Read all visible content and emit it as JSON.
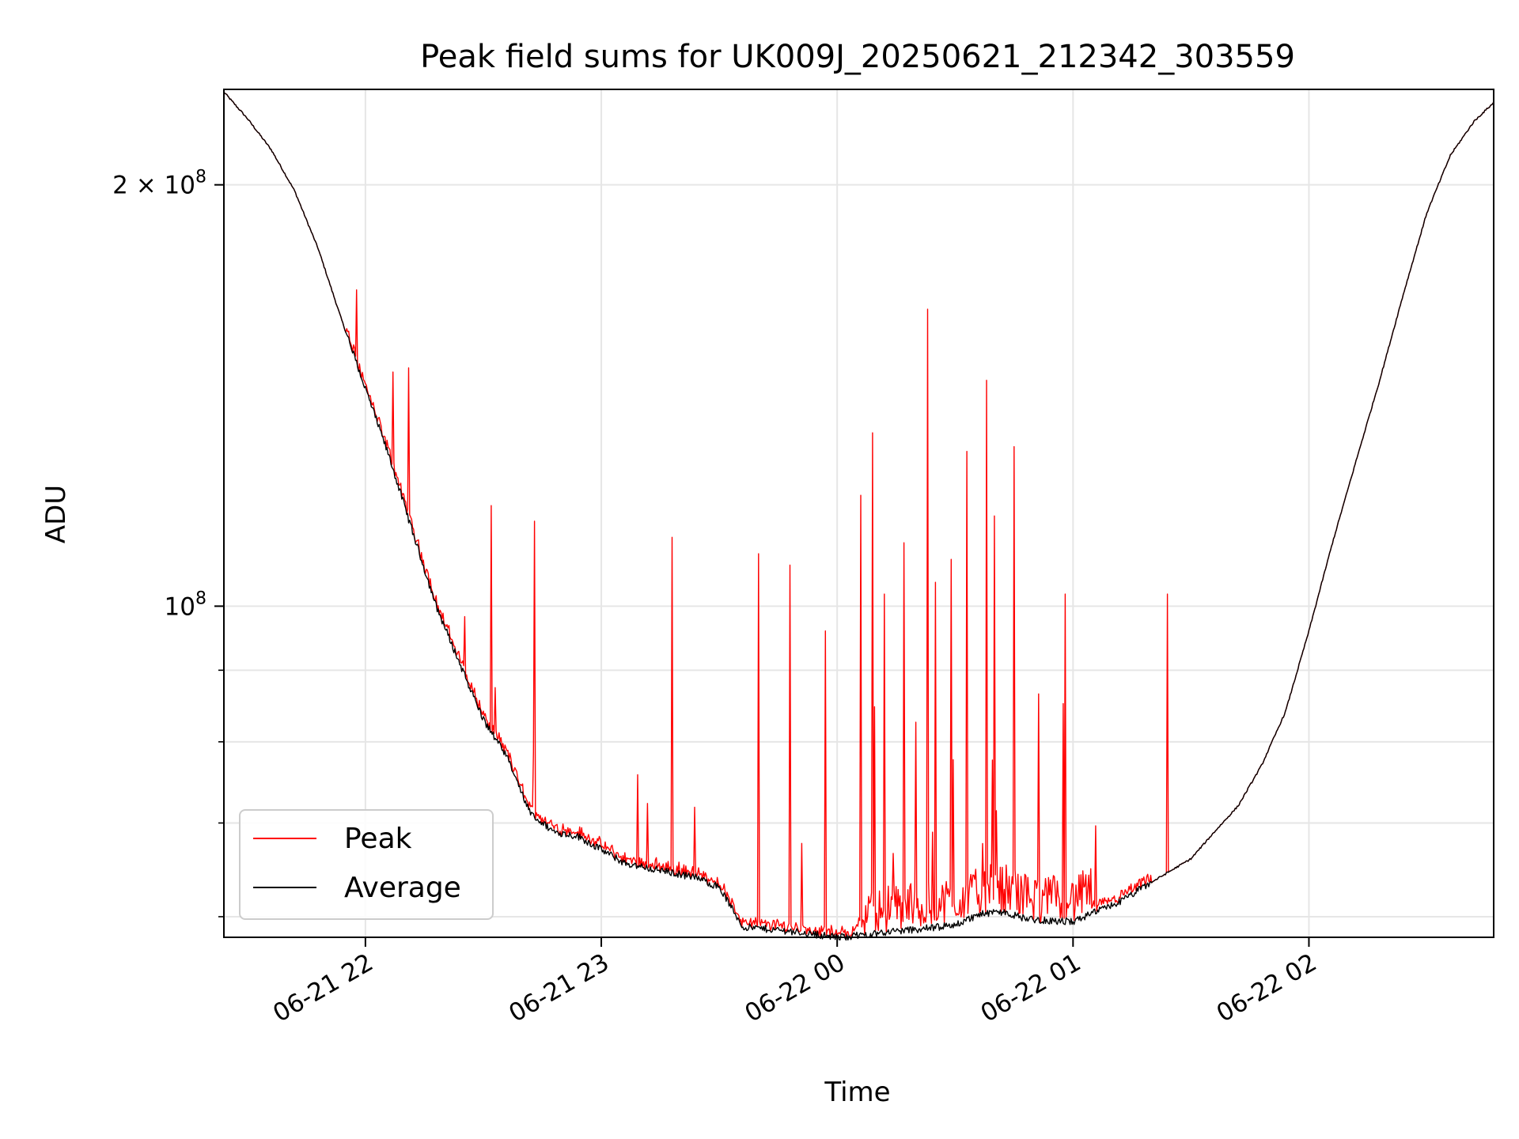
{
  "chart_data": {
    "type": "line",
    "title": "Peak field sums for UK009J_20250621_212342_303559",
    "xlabel": "Time",
    "ylabel": "ADU",
    "y_scale": "log",
    "grid": true,
    "legend_position": "lower-left",
    "xlim": [
      "2025-06-21 21:24",
      "2025-06-22 02:47"
    ],
    "ylim": [
      58000000,
      234000000
    ],
    "x_ticks": [
      {
        "t": "2025-06-21 22:00",
        "label": "06-21 22"
      },
      {
        "t": "2025-06-21 23:00",
        "label": "06-21 23"
      },
      {
        "t": "2025-06-22 00:00",
        "label": "06-22 00"
      },
      {
        "t": "2025-06-22 01:00",
        "label": "06-22 01"
      },
      {
        "t": "2025-06-22 02:00",
        "label": "06-22 02"
      }
    ],
    "y_ticks_major": [
      {
        "v": 100000000,
        "label": "10",
        "sup": "8"
      },
      {
        "v": 200000000,
        "label": "2 × 10",
        "sup": "8"
      }
    ],
    "y_ticks_minor": [
      60000000,
      70000000,
      80000000,
      90000000
    ],
    "series": [
      {
        "name": "Average",
        "color": "#000000",
        "x": [
          "2025-06-21 21:24",
          "2025-06-21 21:30",
          "2025-06-21 21:36",
          "2025-06-21 21:42",
          "2025-06-21 21:48",
          "2025-06-21 21:54",
          "2025-06-21 22:00",
          "2025-06-21 22:06",
          "2025-06-21 22:12",
          "2025-06-21 22:18",
          "2025-06-21 22:24",
          "2025-06-21 22:30",
          "2025-06-21 22:36",
          "2025-06-21 22:42",
          "2025-06-21 22:48",
          "2025-06-21 22:54",
          "2025-06-21 23:00",
          "2025-06-21 23:06",
          "2025-06-21 23:12",
          "2025-06-21 23:18",
          "2025-06-21 23:24",
          "2025-06-21 23:30",
          "2025-06-21 23:36",
          "2025-06-21 23:42",
          "2025-06-21 23:48",
          "2025-06-21 23:54",
          "2025-06-22 00:00",
          "2025-06-22 00:06",
          "2025-06-22 00:12",
          "2025-06-22 00:18",
          "2025-06-22 00:24",
          "2025-06-22 00:30",
          "2025-06-22 00:36",
          "2025-06-22 00:42",
          "2025-06-22 00:48",
          "2025-06-22 00:54",
          "2025-06-22 01:00",
          "2025-06-22 01:06",
          "2025-06-22 01:12",
          "2025-06-22 01:18",
          "2025-06-22 01:24",
          "2025-06-22 01:30",
          "2025-06-22 01:36",
          "2025-06-22 01:42",
          "2025-06-22 01:48",
          "2025-06-22 01:54",
          "2025-06-22 02:00",
          "2025-06-22 02:06",
          "2025-06-22 02:12",
          "2025-06-22 02:18",
          "2025-06-22 02:24",
          "2025-06-22 02:30",
          "2025-06-22 02:36",
          "2025-06-22 02:42",
          "2025-06-22 02:47"
        ],
        "values": [
          233000000,
          223000000,
          212000000,
          198000000,
          180000000,
          160000000,
          143000000,
          128000000,
          113000000,
          100000000,
          91000000,
          83000000,
          78000000,
          71000000,
          69000000,
          68500000,
          67000000,
          65500000,
          65000000,
          64500000,
          64000000,
          63000000,
          59000000,
          58800000,
          58600000,
          58300000,
          58000000,
          58200000,
          58500000,
          58700000,
          58900000,
          59200000,
          60200000,
          60500000,
          59800000,
          59600000,
          59500000,
          60500000,
          61500000,
          63000000,
          64500000,
          66000000,
          69000000,
          72000000,
          77000000,
          84000000,
          96000000,
          111000000,
          127000000,
          145000000,
          167000000,
          191000000,
          210000000,
          222000000,
          229000000
        ]
      },
      {
        "name": "Peak",
        "color": "#ff0000",
        "spikes": [
          {
            "t": "2025-06-21 22:07",
            "v": 147000000
          },
          {
            "t": "2025-06-21 22:11",
            "v": 148000000
          },
          {
            "t": "2025-06-21 22:32",
            "v": 118000000
          },
          {
            "t": "2025-06-21 22:43",
            "v": 115000000
          },
          {
            "t": "2025-06-21 23:18",
            "v": 112000000
          },
          {
            "t": "2025-06-21 23:40",
            "v": 109000000
          },
          {
            "t": "2025-06-21 23:48",
            "v": 107000000
          },
          {
            "t": "2025-06-21 23:57",
            "v": 96000000
          },
          {
            "t": "2025-06-22 00:06",
            "v": 120000000
          },
          {
            "t": "2025-06-22 00:09",
            "v": 133000000
          },
          {
            "t": "2025-06-22 00:12",
            "v": 102000000
          },
          {
            "t": "2025-06-22 00:17",
            "v": 111000000
          },
          {
            "t": "2025-06-22 00:23",
            "v": 163000000
          },
          {
            "t": "2025-06-22 00:25",
            "v": 104000000
          },
          {
            "t": "2025-06-22 00:29",
            "v": 108000000
          },
          {
            "t": "2025-06-22 00:33",
            "v": 129000000
          },
          {
            "t": "2025-06-22 00:38",
            "v": 145000000
          },
          {
            "t": "2025-06-22 00:40",
            "v": 116000000
          },
          {
            "t": "2025-06-22 00:45",
            "v": 130000000
          },
          {
            "t": "2025-06-22 00:58",
            "v": 102000000
          },
          {
            "t": "2025-06-22 01:24",
            "v": 102000000
          }
        ]
      }
    ]
  }
}
